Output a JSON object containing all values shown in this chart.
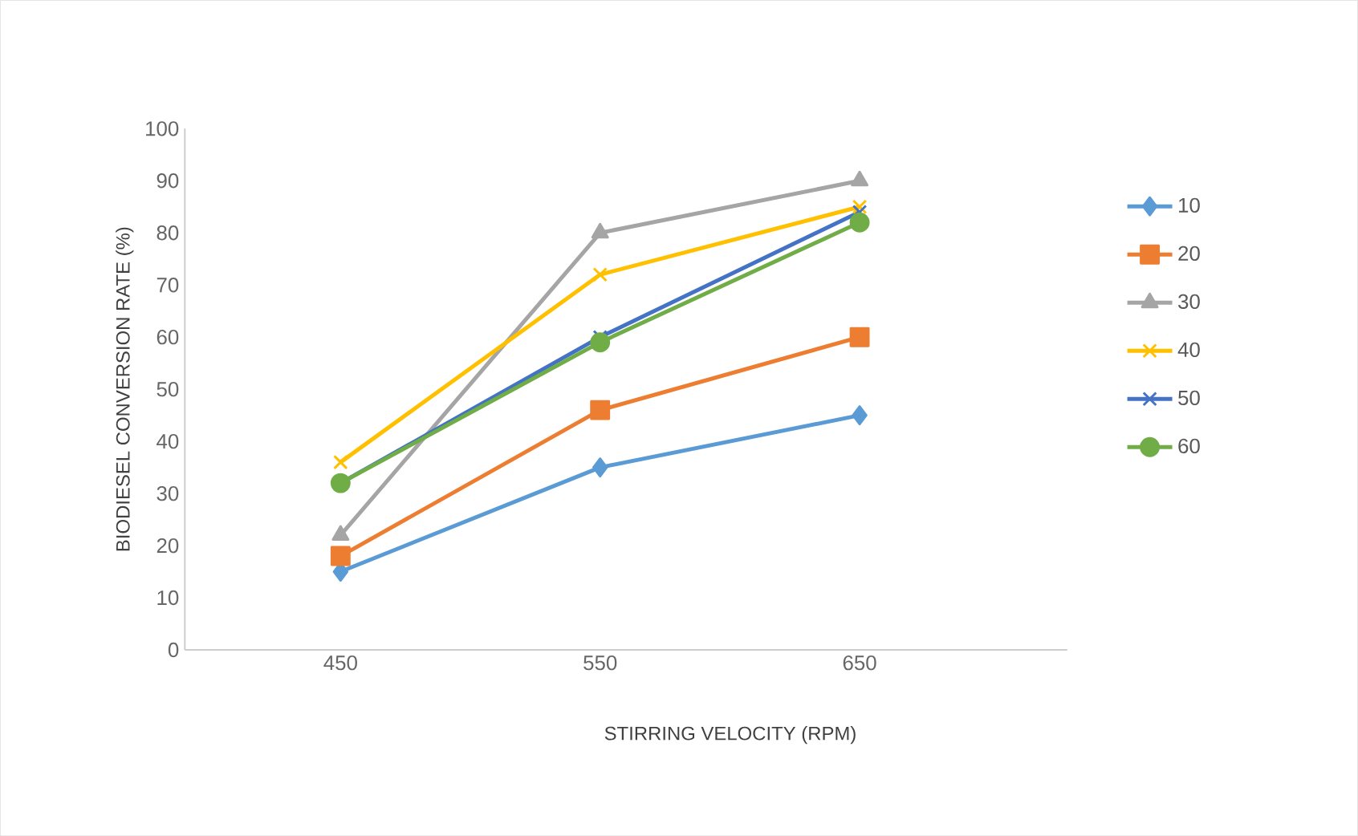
{
  "chart_data": {
    "type": "line",
    "xlabel": "STIRRING VELOCITY (RPM)",
    "ylabel": "BIODIESEL CONVERSION RATE  (%)",
    "categories": [
      "450",
      "550",
      "650"
    ],
    "series": [
      {
        "name": "10",
        "color": "#5b9bd5",
        "marker": "diamond",
        "values": [
          15,
          35,
          45
        ]
      },
      {
        "name": "20",
        "color": "#ed7d31",
        "marker": "square",
        "values": [
          18,
          46,
          60
        ]
      },
      {
        "name": "30",
        "color": "#a5a5a5",
        "marker": "triangle",
        "values": [
          22,
          80,
          90
        ]
      },
      {
        "name": "40",
        "color": "#ffc000",
        "marker": "cross",
        "values": [
          36,
          72,
          85
        ]
      },
      {
        "name": "50",
        "color": "#4472c4",
        "marker": "cross",
        "values": [
          32,
          60,
          84
        ]
      },
      {
        "name": "60",
        "color": "#70ad47",
        "marker": "circle",
        "values": [
          32,
          59,
          82
        ]
      }
    ],
    "ylim": [
      0,
      100
    ],
    "yticks": [
      0,
      10,
      20,
      30,
      40,
      50,
      60,
      70,
      80,
      90,
      100
    ],
    "grid": false,
    "legend": "right",
    "line_style": "solid"
  }
}
